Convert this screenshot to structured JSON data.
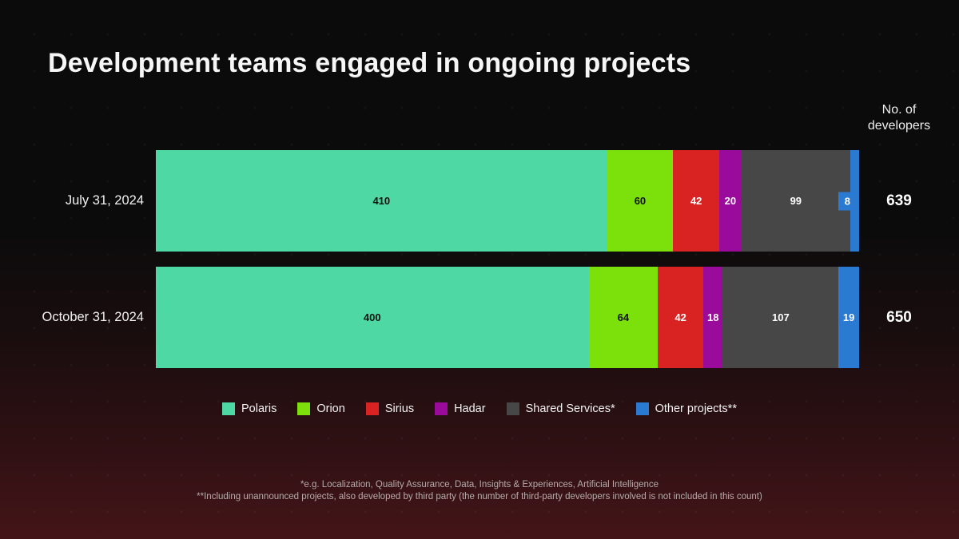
{
  "title": "Development teams engaged in ongoing projects",
  "value_axis_header": "No. of developers",
  "background": {
    "top_color": "#0b0b0c",
    "bottom_color": "#441518"
  },
  "chart_data": {
    "type": "bar",
    "subtype": "horizontal-stacked",
    "title": "Development teams engaged in ongoing projects",
    "value_label": "No. of developers",
    "categories": [
      "July 31, 2024",
      "October 31, 2024"
    ],
    "series": [
      {
        "name": "Polaris",
        "color": "#4ed9a4",
        "label_color": "#101010",
        "values": [
          410,
          400
        ]
      },
      {
        "name": "Orion",
        "color": "#7ce10b",
        "label_color": "#101010",
        "values": [
          60,
          64
        ]
      },
      {
        "name": "Sirius",
        "color": "#d92222",
        "label_color": "#ffffff",
        "values": [
          42,
          42
        ]
      },
      {
        "name": "Hadar",
        "color": "#9b0b9b",
        "label_color": "#ffffff",
        "values": [
          20,
          18
        ]
      },
      {
        "name": "Shared Services*",
        "color": "#474747",
        "label_color": "#ffffff",
        "values": [
          99,
          107
        ]
      },
      {
        "name": "Other projects**",
        "color": "#2b7ad2",
        "label_color": "#ffffff",
        "values": [
          8,
          19
        ]
      }
    ],
    "totals": [
      639,
      650
    ],
    "legend_position": "bottom",
    "grid": false
  },
  "footnotes": [
    "*e.g. Localization, Quality Assurance, Data, Insights & Experiences, Artificial Intelligence",
    "**Including unannounced projects, also developed by third party (the number of third-party developers involved is not included in this count)"
  ]
}
